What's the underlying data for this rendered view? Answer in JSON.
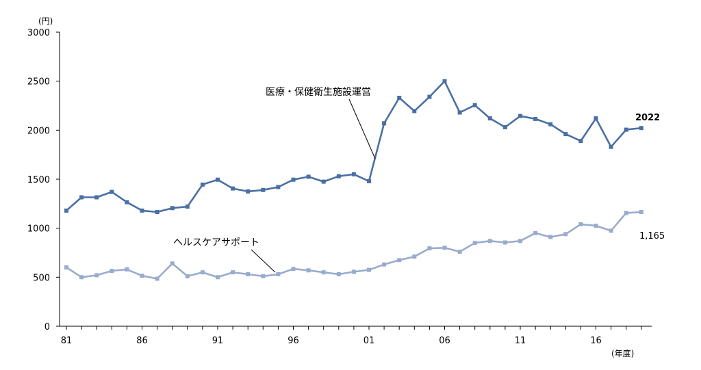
{
  "chart_data": {
    "type": "line",
    "unit_label": "(円)",
    "x_unit_label": "(年度)",
    "ylim": [
      0,
      3000
    ],
    "y_ticks": [
      0,
      500,
      1000,
      1500,
      2000,
      2500,
      3000
    ],
    "x_tick_labels": [
      "81",
      "86",
      "91",
      "96",
      "01",
      "06",
      "11",
      "16"
    ],
    "x": [
      1981,
      1982,
      1983,
      1984,
      1985,
      1986,
      1987,
      1988,
      1989,
      1990,
      1991,
      1992,
      1993,
      1994,
      1995,
      1996,
      1997,
      1998,
      1999,
      2000,
      2001,
      2002,
      2003,
      2004,
      2005,
      2006,
      2007,
      2008,
      2009,
      2010,
      2011,
      2012,
      2013,
      2014,
      2015,
      2016,
      2017,
      2018,
      2019
    ],
    "grid": false,
    "series": [
      {
        "name": "医療・保健衛生施設運営",
        "color": "#4a6fa5",
        "end_label": "2022",
        "values": [
          1180,
          1315,
          1315,
          1370,
          1265,
          1180,
          1165,
          1205,
          1220,
          1445,
          1495,
          1405,
          1375,
          1390,
          1420,
          1495,
          1525,
          1475,
          1530,
          1550,
          1480,
          2070,
          2330,
          2195,
          2340,
          2500,
          2180,
          2255,
          2120,
          2030,
          2145,
          2115,
          2060,
          1960,
          1890,
          2120,
          1830,
          2005,
          2022
        ]
      },
      {
        "name": "ヘルスケアサポート",
        "color": "#9aabcd",
        "end_label": "1,165",
        "values": [
          600,
          500,
          520,
          565,
          580,
          515,
          485,
          640,
          510,
          550,
          500,
          550,
          530,
          510,
          530,
          585,
          570,
          550,
          530,
          555,
          575,
          630,
          675,
          710,
          795,
          800,
          760,
          850,
          870,
          855,
          870,
          950,
          910,
          940,
          1040,
          1025,
          975,
          1155,
          1165
        ]
      }
    ]
  }
}
